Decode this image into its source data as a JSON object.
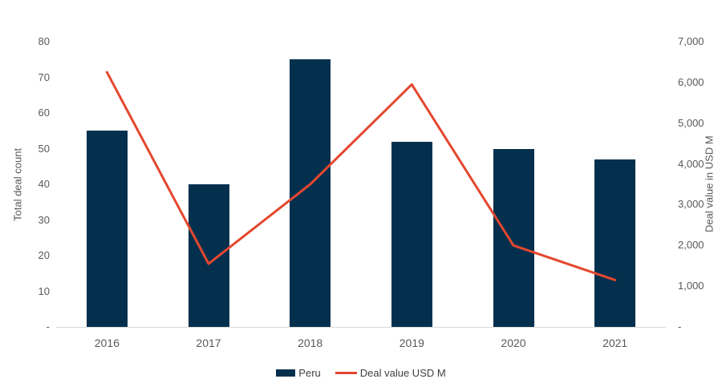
{
  "chart_data": {
    "type": "bar",
    "subtype": "combo-bar-line",
    "title": "",
    "categories": [
      "2016",
      "2017",
      "2018",
      "2019",
      "2020",
      "2021"
    ],
    "series": [
      {
        "name": "Peru",
        "type": "bar",
        "axis": "left",
        "values": [
          55,
          40,
          75,
          52,
          50,
          47
        ],
        "color": "#04304E"
      },
      {
        "name": "Deal value USD M",
        "type": "line",
        "axis": "right",
        "values": [
          6250,
          1550,
          3500,
          5950,
          2000,
          1150
        ],
        "color": "#E4472F"
      }
    ],
    "xlabel": "",
    "ylabel_left": "Total deal count",
    "ylabel_right": "Deal value in USD M",
    "y_left": {
      "min": 0,
      "max": 80,
      "tick_step": 10,
      "tick_labels": [
        "-",
        "10",
        "20",
        "30",
        "40",
        "50",
        "60",
        "70",
        "80"
      ]
    },
    "y_right": {
      "min": 0,
      "max": 7000,
      "tick_step": 1000,
      "tick_labels": [
        "-",
        "1,000",
        "2,000",
        "3,000",
        "4,000",
        "5,000",
        "6,000",
        "7,000"
      ]
    },
    "grid": false,
    "legend": {
      "position": "bottom",
      "items": [
        {
          "label": "Peru",
          "marker": "bar-swatch",
          "color": "#04304E"
        },
        {
          "label": "Deal value USD M",
          "marker": "line-swatch",
          "color": "#E4472F"
        }
      ]
    },
    "colors": {
      "tick_text": "#595959",
      "axis_title_text": "#595959",
      "legend_text": "#404040",
      "axis_line": "#D9D9D9",
      "background": "#FFFFFF"
    }
  }
}
